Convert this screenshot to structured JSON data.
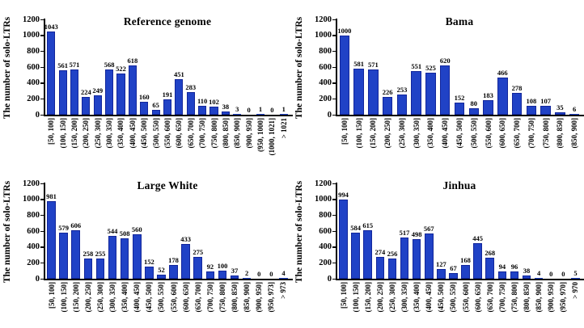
{
  "figure": {
    "bar_color": "#2042C6",
    "bar_border_color": "#12269B",
    "axis_color": "#000000",
    "background_color": "#FFFFFF"
  },
  "chart_data": [
    {
      "type": "bar",
      "title": "Reference genome",
      "ylabel": "The number of solo-LTRs",
      "xlabel": "",
      "ylim": [
        0,
        1200
      ],
      "yticks": [
        0,
        200,
        400,
        600,
        800,
        1000,
        1200
      ],
      "grid": false,
      "legend": "none",
      "categories": [
        "[50, 100]",
        "(100, 150]",
        "(150, 200]",
        "(200, 250]",
        "(250, 300]",
        "(300, 350]",
        "(350, 400]",
        "(400, 450]",
        "(450, 500]",
        "(500, 550]",
        "(550, 600]",
        "(600, 650]",
        "(650, 700]",
        "(700, 750]",
        "(750, 800]",
        "(800, 850]",
        "(850, 900]",
        "(900, 950]",
        "(950, 1000]",
        "(1000, 1021]",
        "> 1021"
      ],
      "values": [
        1043,
        561,
        571,
        224,
        249,
        568,
        522,
        618,
        160,
        65,
        191,
        451,
        283,
        110,
        102,
        38,
        3,
        0,
        1,
        0,
        1
      ]
    },
    {
      "type": "bar",
      "title": "Bama",
      "ylabel": "The number of solo-LTRs",
      "xlabel": "",
      "ylim": [
        0,
        1200
      ],
      "yticks": [
        0,
        200,
        400,
        600,
        800,
        1000,
        1200
      ],
      "grid": false,
      "legend": "none",
      "categories": [
        "[50, 100]",
        "(100, 150]",
        "(150, 200]",
        "(200, 250]",
        "(250, 300]",
        "(300, 350]",
        "(350, 400]",
        "(400, 450]",
        "(450, 500]",
        "(500, 550]",
        "(550, 600]",
        "(600, 650]",
        "(650, 700]",
        "(700, 750]",
        "(750, 800]",
        "(800, 850]",
        "(850, 900]"
      ],
      "values": [
        1000,
        581,
        571,
        226,
        253,
        551,
        525,
        620,
        152,
        80,
        183,
        466,
        278,
        108,
        107,
        35,
        6
      ]
    },
    {
      "type": "bar",
      "title": "Large White",
      "ylabel": "The number of solo-LTRs",
      "xlabel": "",
      "ylim": [
        0,
        1200
      ],
      "yticks": [
        0,
        200,
        400,
        600,
        800,
        1000,
        1200
      ],
      "grid": false,
      "legend": "none",
      "categories": [
        "[50, 100]",
        "(100, 150]",
        "(150, 200]",
        "(200, 250]",
        "(250, 300]",
        "(300, 350]",
        "(350, 400]",
        "(400, 450]",
        "(450, 500]",
        "(500, 550]",
        "(550, 600]",
        "(600, 650]",
        "(650, 700]",
        "(700, 750]",
        "(750, 800]",
        "(800, 850]",
        "(850, 900]",
        "(900, 950]",
        "(950, 973]",
        "> 973"
      ],
      "values": [
        981,
        579,
        606,
        258,
        255,
        544,
        508,
        560,
        152,
        52,
        178,
        433,
        275,
        92,
        100,
        37,
        2,
        0,
        0,
        4
      ]
    },
    {
      "type": "bar",
      "title": "Jinhua",
      "ylabel": "The number of solo-LTRs",
      "xlabel": "",
      "ylim": [
        0,
        1200
      ],
      "yticks": [
        0,
        200,
        400,
        600,
        800,
        1000,
        1200
      ],
      "grid": false,
      "legend": "none",
      "categories": [
        "[50, 100]",
        "(100, 150]",
        "(150, 200]",
        "(200, 250]",
        "(250, 300]",
        "(300, 350]",
        "(350, 400]",
        "(400, 450]",
        "(450, 500]",
        "(500, 550]",
        "(550, 600]",
        "(600, 650]",
        "(650, 700]",
        "(700, 750]",
        "(750, 800]",
        "(800, 850]",
        "(850, 900]",
        "(900, 950]",
        "(950, 970]",
        "> 970"
      ],
      "values": [
        994,
        584,
        615,
        274,
        256,
        517,
        498,
        567,
        127,
        67,
        168,
        445,
        268,
        94,
        96,
        38,
        4,
        0,
        0,
        5
      ]
    }
  ]
}
